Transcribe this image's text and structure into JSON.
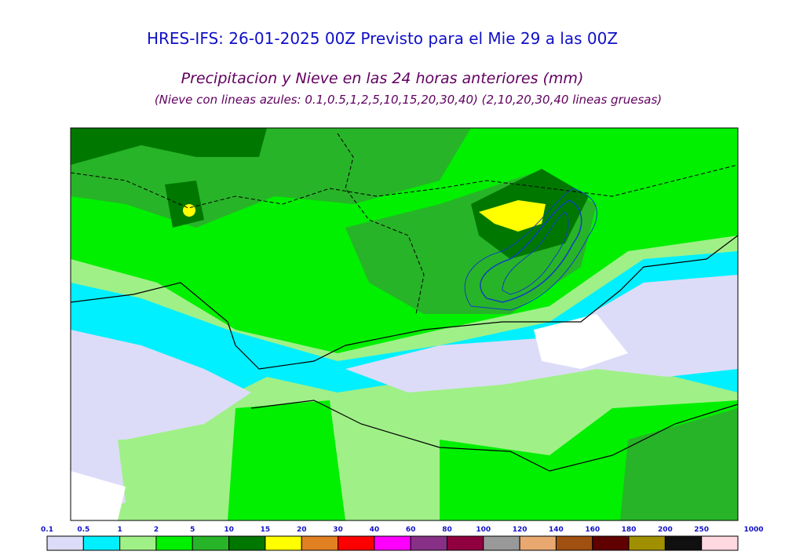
{
  "header": {
    "title": "HRES-IFS: 26-01-2025 00Z Previsto para el Mie 29 a las 00Z",
    "subtitle": "Precipitacion y Nieve en las 24 horas anteriores (mm)",
    "note": "(Nieve con lineas azules: 0.1,0.5,1,2,5,10,15,20,30,40)  (2,10,20,30,40 lineas gruesas)"
  },
  "legend": {
    "ticks": [
      0.1,
      0.5,
      1,
      2,
      5,
      10,
      15,
      20,
      30,
      40,
      60,
      80,
      100,
      120,
      140,
      160,
      180,
      200,
      250,
      1000
    ],
    "colors": [
      "#dcdcf8",
      "#00f0ff",
      "#a0f088",
      "#00f000",
      "#28b428",
      "#007800",
      "#ffff00",
      "#e08020",
      "#ff0000",
      "#ff00ff",
      "#883088",
      "#900040",
      "#999999",
      "#e8a870",
      "#a05010",
      "#600000",
      "#a09000",
      "#101010",
      "#ffd8e0"
    ]
  }
}
